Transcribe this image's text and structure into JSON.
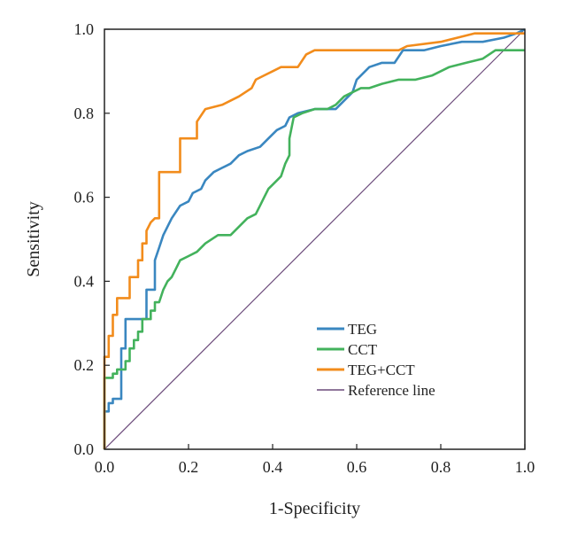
{
  "chart_data": {
    "type": "line",
    "title": "",
    "xlabel": "1-Specificity",
    "ylabel": "Sensitivity",
    "xlim": [
      0,
      1
    ],
    "ylim": [
      0,
      1
    ],
    "xticks": [
      "0.0",
      "0.2",
      "0.4",
      "0.6",
      "0.8",
      "1.0"
    ],
    "yticks": [
      "0.0",
      "0.2",
      "0.4",
      "0.6",
      "0.8",
      "1.0"
    ],
    "grid": false,
    "legend_position": "lower-right",
    "series": [
      {
        "name": "TEG",
        "color": "#3a87c0",
        "points": [
          [
            0,
            0
          ],
          [
            0,
            0.09
          ],
          [
            0.01,
            0.09
          ],
          [
            0.01,
            0.11
          ],
          [
            0.02,
            0.11
          ],
          [
            0.02,
            0.12
          ],
          [
            0.04,
            0.12
          ],
          [
            0.04,
            0.24
          ],
          [
            0.05,
            0.24
          ],
          [
            0.05,
            0.31
          ],
          [
            0.1,
            0.31
          ],
          [
            0.1,
            0.38
          ],
          [
            0.12,
            0.38
          ],
          [
            0.12,
            0.45
          ],
          [
            0.13,
            0.48
          ],
          [
            0.14,
            0.51
          ],
          [
            0.16,
            0.55
          ],
          [
            0.18,
            0.58
          ],
          [
            0.2,
            0.59
          ],
          [
            0.21,
            0.61
          ],
          [
            0.23,
            0.62
          ],
          [
            0.24,
            0.64
          ],
          [
            0.26,
            0.66
          ],
          [
            0.28,
            0.67
          ],
          [
            0.3,
            0.68
          ],
          [
            0.32,
            0.7
          ],
          [
            0.34,
            0.71
          ],
          [
            0.37,
            0.72
          ],
          [
            0.39,
            0.74
          ],
          [
            0.41,
            0.76
          ],
          [
            0.43,
            0.77
          ],
          [
            0.44,
            0.79
          ],
          [
            0.46,
            0.8
          ],
          [
            0.5,
            0.81
          ],
          [
            0.55,
            0.81
          ],
          [
            0.57,
            0.83
          ],
          [
            0.59,
            0.85
          ],
          [
            0.6,
            0.88
          ],
          [
            0.63,
            0.91
          ],
          [
            0.66,
            0.92
          ],
          [
            0.69,
            0.92
          ],
          [
            0.71,
            0.95
          ],
          [
            0.76,
            0.95
          ],
          [
            0.8,
            0.96
          ],
          [
            0.85,
            0.97
          ],
          [
            0.9,
            0.97
          ],
          [
            0.95,
            0.98
          ],
          [
            0.98,
            0.99
          ],
          [
            1,
            1
          ]
        ]
      },
      {
        "name": "CCT",
        "color": "#43b25c",
        "points": [
          [
            0,
            0
          ],
          [
            0,
            0.17
          ],
          [
            0.02,
            0.17
          ],
          [
            0.02,
            0.18
          ],
          [
            0.03,
            0.18
          ],
          [
            0.03,
            0.19
          ],
          [
            0.05,
            0.19
          ],
          [
            0.05,
            0.21
          ],
          [
            0.06,
            0.21
          ],
          [
            0.06,
            0.24
          ],
          [
            0.07,
            0.24
          ],
          [
            0.07,
            0.26
          ],
          [
            0.08,
            0.26
          ],
          [
            0.08,
            0.28
          ],
          [
            0.09,
            0.28
          ],
          [
            0.09,
            0.31
          ],
          [
            0.11,
            0.31
          ],
          [
            0.11,
            0.33
          ],
          [
            0.12,
            0.33
          ],
          [
            0.12,
            0.35
          ],
          [
            0.13,
            0.35
          ],
          [
            0.14,
            0.38
          ],
          [
            0.15,
            0.4
          ],
          [
            0.16,
            0.41
          ],
          [
            0.17,
            0.43
          ],
          [
            0.18,
            0.45
          ],
          [
            0.2,
            0.46
          ],
          [
            0.22,
            0.47
          ],
          [
            0.24,
            0.49
          ],
          [
            0.27,
            0.51
          ],
          [
            0.3,
            0.51
          ],
          [
            0.32,
            0.53
          ],
          [
            0.34,
            0.55
          ],
          [
            0.36,
            0.56
          ],
          [
            0.37,
            0.58
          ],
          [
            0.38,
            0.6
          ],
          [
            0.39,
            0.62
          ],
          [
            0.4,
            0.63
          ],
          [
            0.42,
            0.65
          ],
          [
            0.43,
            0.68
          ],
          [
            0.44,
            0.7
          ],
          [
            0.44,
            0.74
          ],
          [
            0.45,
            0.79
          ],
          [
            0.47,
            0.8
          ],
          [
            0.5,
            0.81
          ],
          [
            0.53,
            0.81
          ],
          [
            0.55,
            0.82
          ],
          [
            0.57,
            0.84
          ],
          [
            0.59,
            0.85
          ],
          [
            0.61,
            0.86
          ],
          [
            0.63,
            0.86
          ],
          [
            0.66,
            0.87
          ],
          [
            0.7,
            0.88
          ],
          [
            0.74,
            0.88
          ],
          [
            0.78,
            0.89
          ],
          [
            0.82,
            0.91
          ],
          [
            0.86,
            0.92
          ],
          [
            0.9,
            0.93
          ],
          [
            0.93,
            0.95
          ],
          [
            1,
            0.95
          ]
        ]
      },
      {
        "name": "TEG+CCT",
        "color": "#f28c1c",
        "points": [
          [
            0,
            0
          ],
          [
            0,
            0.22
          ],
          [
            0.01,
            0.22
          ],
          [
            0.01,
            0.27
          ],
          [
            0.02,
            0.27
          ],
          [
            0.02,
            0.32
          ],
          [
            0.03,
            0.32
          ],
          [
            0.03,
            0.36
          ],
          [
            0.06,
            0.36
          ],
          [
            0.06,
            0.41
          ],
          [
            0.08,
            0.41
          ],
          [
            0.08,
            0.45
          ],
          [
            0.09,
            0.45
          ],
          [
            0.09,
            0.49
          ],
          [
            0.1,
            0.49
          ],
          [
            0.1,
            0.52
          ],
          [
            0.11,
            0.54
          ],
          [
            0.12,
            0.55
          ],
          [
            0.13,
            0.55
          ],
          [
            0.13,
            0.66
          ],
          [
            0.18,
            0.66
          ],
          [
            0.18,
            0.74
          ],
          [
            0.22,
            0.74
          ],
          [
            0.22,
            0.78
          ],
          [
            0.24,
            0.81
          ],
          [
            0.28,
            0.82
          ],
          [
            0.3,
            0.83
          ],
          [
            0.32,
            0.84
          ],
          [
            0.35,
            0.86
          ],
          [
            0.36,
            0.88
          ],
          [
            0.38,
            0.89
          ],
          [
            0.4,
            0.9
          ],
          [
            0.42,
            0.91
          ],
          [
            0.46,
            0.91
          ],
          [
            0.48,
            0.94
          ],
          [
            0.5,
            0.95
          ],
          [
            0.6,
            0.95
          ],
          [
            0.7,
            0.95
          ],
          [
            0.72,
            0.96
          ],
          [
            0.8,
            0.97
          ],
          [
            0.84,
            0.98
          ],
          [
            0.88,
            0.99
          ],
          [
            1,
            0.99
          ]
        ]
      },
      {
        "name": "Reference line",
        "color": "#6b4a7a",
        "points": [
          [
            0,
            0
          ],
          [
            1,
            1
          ]
        ]
      }
    ]
  }
}
